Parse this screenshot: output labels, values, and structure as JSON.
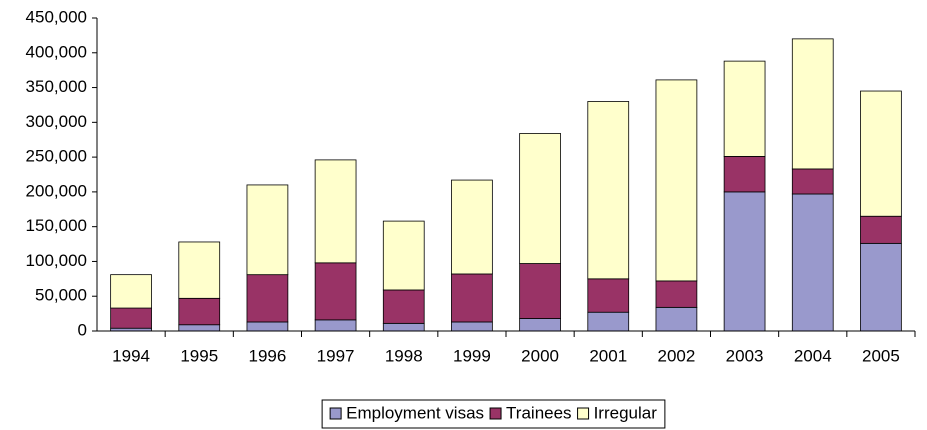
{
  "chart_data": {
    "type": "stacked-bar",
    "categories": [
      "1994",
      "1995",
      "1996",
      "1997",
      "1998",
      "1999",
      "2000",
      "2001",
      "2002",
      "2003",
      "2004",
      "2005"
    ],
    "series": [
      {
        "name": "Employment visas",
        "color": "#9999cc",
        "values": [
          4000,
          9000,
          13000,
          16000,
          11000,
          13000,
          18000,
          27000,
          34000,
          200000,
          197000,
          126000
        ]
      },
      {
        "name": "Trainees",
        "color": "#993366",
        "values": [
          29000,
          38000,
          68000,
          82000,
          48000,
          69000,
          79000,
          48000,
          38000,
          51000,
          36000,
          39000
        ]
      },
      {
        "name": "Irregular",
        "color": "#ffffcc",
        "values": [
          48000,
          81000,
          129000,
          148000,
          99000,
          135000,
          187000,
          255000,
          289000,
          137000,
          187000,
          180000
        ]
      }
    ],
    "ylim": [
      0,
      450000
    ],
    "yticks": [
      0,
      {
        "value": 50000,
        "label": "50,000"
      },
      {
        "value": 100000,
        "label": "100,000"
      },
      {
        "value": 150000,
        "label": "150,000"
      },
      {
        "value": 200000,
        "label": "200,000"
      },
      {
        "value": 250000,
        "label": "250,000"
      },
      {
        "value": 300000,
        "label": "300,000"
      },
      {
        "value": 350000,
        "label": "350,000"
      },
      {
        "value": 400000,
        "label": "400,000"
      },
      {
        "value": 450000,
        "label": "450,000"
      }
    ],
    "legend": "bottom"
  }
}
